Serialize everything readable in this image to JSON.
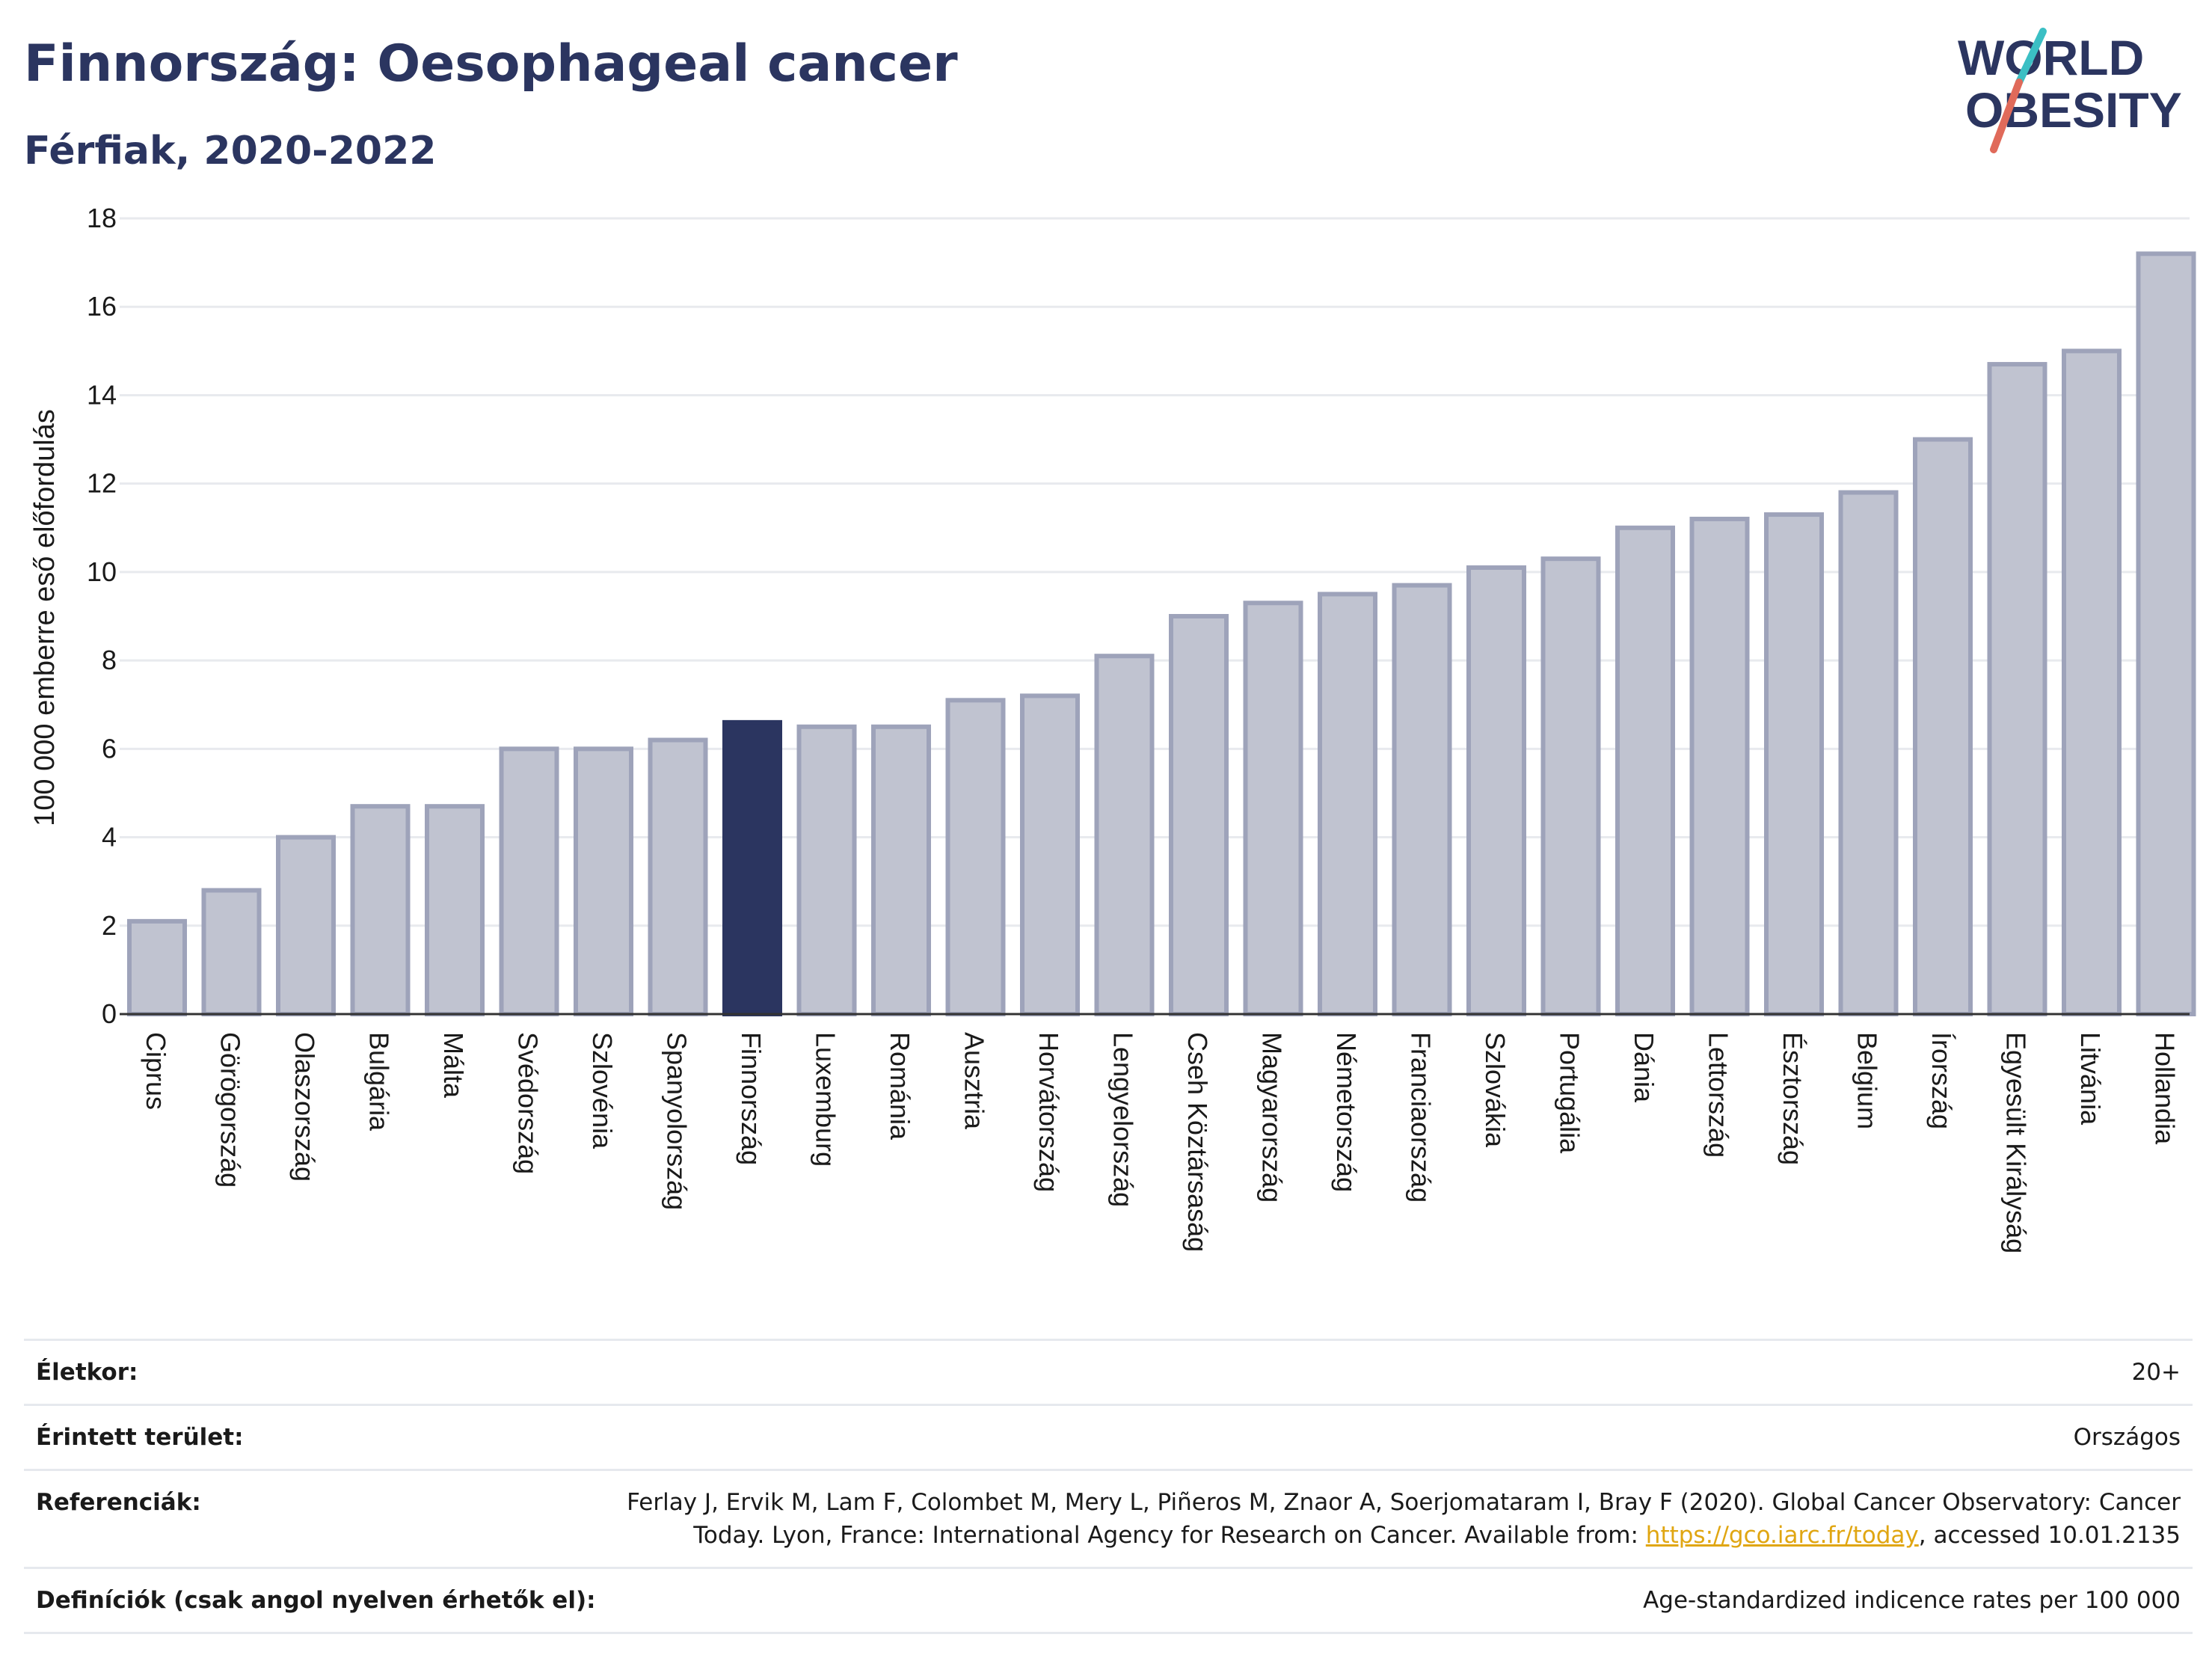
{
  "header": {
    "title": "Finnország: Oesophageal cancer",
    "subtitle": "Férfiak, 2020-2022"
  },
  "logo": {
    "line1": "WORLD",
    "line2": "OBESITY",
    "text_color": "#2b3560",
    "slash_colors": [
      "#3bbfc4",
      "#e06a5a"
    ]
  },
  "chart_data": {
    "type": "bar",
    "categories": [
      "Ciprus",
      "Görögország",
      "Olaszország",
      "Bulgária",
      "Málta",
      "Svédország",
      "Szlovénia",
      "Spanyolország",
      "Finnország",
      "Luxemburg",
      "Románia",
      "Ausztria",
      "Horvátország",
      "Lengyelország",
      "Cseh Köztársaság",
      "Magyarország",
      "Németország",
      "Franciaország",
      "Szlovákia",
      "Portugália",
      "Dánia",
      "Lettország",
      "Észtország",
      "Belgium",
      "Írország",
      "Egyesült Királyság",
      "Litvánia",
      "Hollandia"
    ],
    "values": [
      2.1,
      2.8,
      4.0,
      4.7,
      4.7,
      6.0,
      6.0,
      6.2,
      6.6,
      6.5,
      6.5,
      7.1,
      7.2,
      8.1,
      9.0,
      9.3,
      9.5,
      9.7,
      10.1,
      10.3,
      11.0,
      11.2,
      11.3,
      11.8,
      13.0,
      14.7,
      15.0,
      17.2
    ],
    "highlight": "Finnország",
    "ylabel": "100 000 emberre eső előfordulás",
    "xlabel": "",
    "ylim": [
      0,
      18
    ],
    "yticks": [
      0,
      2,
      4,
      6,
      8,
      10,
      12,
      14,
      16,
      18
    ],
    "grid": true,
    "colors": {
      "bar": "#c0c3d0",
      "bar_edge": "#9ea3ba",
      "highlight": "#2b3560",
      "grid": "#e8eaee"
    }
  },
  "info": [
    {
      "key": "Életkor:",
      "value": "20+"
    },
    {
      "key": "Érintett terület:",
      "value": "Országos"
    },
    {
      "key": "Referenciák:",
      "value_pre": "Ferlay J, Ervik M, Lam F, Colombet M, Mery L, Piñeros M, Znaor A, Soerjomataram I, Bray F (2020). Global Cancer Observatory: Cancer Today. Lyon, France: International Agency for Research on Cancer. Available from: ",
      "link": "https://gco.iarc.fr/today",
      "value_post": ", accessed 10.01.2135"
    },
    {
      "key": "Definíciók (csak angol nyelven érhetők el):",
      "value": "Age-standardized indicence rates per 100 000"
    }
  ]
}
